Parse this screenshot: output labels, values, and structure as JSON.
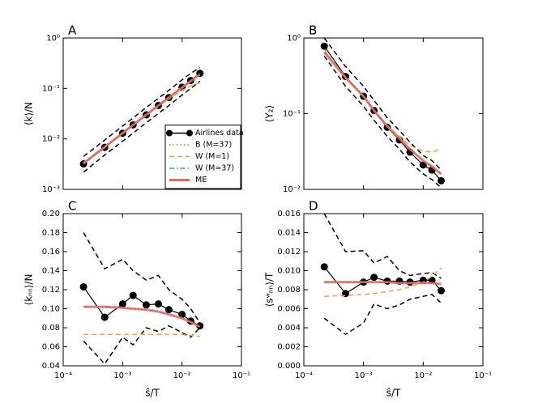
{
  "chart_data": [
    {
      "type": "line",
      "title": "A",
      "ylabel": "⟨k⟩/N",
      "xlog": true,
      "ylog": true,
      "legend": "lower right",
      "x": [
        0.00022,
        0.0005,
        0.001,
        0.0015,
        0.0025,
        0.004,
        0.006,
        0.01,
        0.014,
        0.02
      ],
      "xlim": [
        0.0001,
        0.1
      ],
      "xticks": [
        {
          "value": 0.0001,
          "label": "10⁻⁴"
        },
        {
          "value": 0.001,
          "label": "10⁻³"
        },
        {
          "value": 0.01,
          "label": "10⁻²"
        },
        {
          "value": 0.1,
          "label": "10⁻¹"
        }
      ],
      "ylim": [
        0.001,
        1
      ],
      "yticks": [
        {
          "value": 0.001,
          "label": "10⁻³"
        },
        {
          "value": 0.01,
          "label": "10⁻²"
        },
        {
          "value": 0.1,
          "label": "10⁻¹"
        },
        {
          "value": 1,
          "label": "10⁰"
        }
      ],
      "series": [
        {
          "color": "#000000",
          "style": "dashed",
          "values": [
            0.0045,
            0.0095,
            0.018,
            0.026,
            0.042,
            0.064,
            0.092,
            0.148,
            0.2,
            0.26
          ]
        },
        {
          "color": "#000000",
          "style": "dashed",
          "values": [
            0.0022,
            0.0048,
            0.009,
            0.013,
            0.021,
            0.032,
            0.046,
            0.074,
            0.1,
            0.14
          ]
        },
        {
          "name": "Airlines data",
          "color": "#000000",
          "style": "solid",
          "marker": true,
          "values": [
            0.0032,
            0.0068,
            0.013,
            0.019,
            0.03,
            0.046,
            0.066,
            0.106,
            0.144,
            0.2
          ]
        },
        {
          "name": "B (M=37)",
          "color": "#4caf50",
          "style": "dotted",
          "values": [
            0.0033,
            0.0069,
            0.013,
            0.019,
            0.03,
            0.046,
            0.066,
            0.104,
            0.14,
            0.19
          ]
        },
        {
          "name": "W (M=1)",
          "color": "#f5a04a",
          "style": "dashed",
          "values": [
            0.0032,
            0.0068,
            0.013,
            0.019,
            0.029,
            0.044,
            0.062,
            0.092,
            0.112,
            0.13
          ]
        },
        {
          "name": "W (M=37)",
          "color": "#4a90d0",
          "style": "dashdot",
          "values": [
            0.0033,
            0.0069,
            0.013,
            0.019,
            0.03,
            0.046,
            0.066,
            0.104,
            0.14,
            0.19
          ]
        },
        {
          "name": "ME",
          "color": "#e06b63",
          "style": "thick",
          "values": [
            0.0033,
            0.0069,
            0.013,
            0.019,
            0.03,
            0.046,
            0.066,
            0.104,
            0.14,
            0.19
          ]
        }
      ]
    },
    {
      "type": "line",
      "title": "B",
      "ylabel": "⟨Y₂⟩",
      "xlog": true,
      "ylog": true,
      "x": [
        0.00022,
        0.0005,
        0.001,
        0.0015,
        0.0025,
        0.004,
        0.006,
        0.01,
        0.014,
        0.02
      ],
      "xlim": [
        0.0001,
        0.1
      ],
      "xticks": [
        {
          "value": 0.0001,
          "label": "10⁻⁴"
        },
        {
          "value": 0.001,
          "label": "10⁻³"
        },
        {
          "value": 0.01,
          "label": "10⁻²"
        },
        {
          "value": 0.1,
          "label": "10⁻¹"
        }
      ],
      "ylim": [
        0.01,
        1
      ],
      "yticks": [
        {
          "value": 0.01,
          "label": "10⁻²"
        },
        {
          "value": 0.1,
          "label": "10⁻¹"
        },
        {
          "value": 1,
          "label": "10⁰"
        }
      ],
      "series": [
        {
          "color": "#000000",
          "style": "dashed",
          "values": [
            1.0,
            0.42,
            0.23,
            0.15,
            0.088,
            0.06,
            0.042,
            0.028,
            0.024,
            0.018
          ]
        },
        {
          "color": "#000000",
          "style": "dashed",
          "values": [
            0.58,
            0.23,
            0.125,
            0.082,
            0.05,
            0.034,
            0.023,
            0.016,
            0.0135,
            0.0105
          ]
        },
        {
          "name": "Airlines data",
          "color": "#000000",
          "style": "solid",
          "marker": true,
          "values": [
            0.78,
            0.31,
            0.17,
            0.11,
            0.066,
            0.045,
            0.031,
            0.021,
            0.018,
            0.013
          ]
        },
        {
          "name": "B (M=37)",
          "color": "#4caf50",
          "style": "dotted",
          "values": [
            0.65,
            0.3,
            0.17,
            0.11,
            0.068,
            0.047,
            0.034,
            0.024,
            0.02,
            0.016
          ]
        },
        {
          "name": "W (M=1)",
          "color": "#f5a04a",
          "style": "dashed",
          "values": [
            0.7,
            0.3,
            0.17,
            0.11,
            0.07,
            0.05,
            0.038,
            0.032,
            0.031,
            0.034
          ]
        },
        {
          "name": "W (M=37)",
          "color": "#4a90d0",
          "style": "dashdot",
          "values": [
            0.65,
            0.3,
            0.17,
            0.11,
            0.068,
            0.047,
            0.034,
            0.024,
            0.02,
            0.016
          ]
        },
        {
          "name": "ME",
          "color": "#e06b63",
          "style": "thick",
          "values": [
            0.65,
            0.3,
            0.17,
            0.11,
            0.068,
            0.047,
            0.034,
            0.024,
            0.02,
            0.016
          ]
        }
      ]
    },
    {
      "type": "line",
      "title": "C",
      "ylabel": "⟨kₙₙ⟩/N",
      "xlabel": "ŝ/T",
      "xlog": true,
      "ylog": false,
      "x": [
        0.00022,
        0.0005,
        0.001,
        0.0015,
        0.0025,
        0.004,
        0.006,
        0.01,
        0.014,
        0.02
      ],
      "xlim": [
        0.0001,
        0.1
      ],
      "xticks": [
        {
          "value": 0.0001,
          "label": "10⁻⁴"
        },
        {
          "value": 0.001,
          "label": "10⁻³"
        },
        {
          "value": 0.01,
          "label": "10⁻²"
        },
        {
          "value": 0.1,
          "label": "10⁻¹"
        }
      ],
      "ylim": [
        0.04,
        0.2
      ],
      "yticks": [
        0.04,
        0.06,
        0.08,
        {
          "value": 0.1,
          "label": "0.10"
        },
        0.12,
        0.14,
        0.16,
        0.18,
        {
          "value": 0.2,
          "label": "0.20"
        }
      ],
      "series": [
        {
          "color": "#000000",
          "style": "dashed",
          "values": [
            0.18,
            0.142,
            0.152,
            0.14,
            0.13,
            0.135,
            0.12,
            0.11,
            0.1,
            0.085
          ]
        },
        {
          "color": "#000000",
          "style": "dashed",
          "values": [
            0.066,
            0.042,
            0.07,
            0.062,
            0.08,
            0.076,
            0.082,
            0.075,
            0.07,
            0.08
          ]
        },
        {
          "name": "Airlines data",
          "color": "#000000",
          "style": "solid",
          "marker": true,
          "values": [
            0.123,
            0.091,
            0.105,
            0.114,
            0.104,
            0.105,
            0.099,
            0.094,
            0.087,
            0.082
          ]
        },
        {
          "name": "B (M=37)",
          "color": "#4caf50",
          "style": "dotted",
          "values": [
            0.102,
            0.102,
            0.101,
            0.1,
            0.099,
            0.097,
            0.094,
            0.09,
            0.086,
            0.081
          ]
        },
        {
          "name": "W (M=1)",
          "color": "#f5a04a",
          "style": "dashed",
          "values": [
            0.073,
            0.073,
            0.073,
            0.073,
            0.073,
            0.073,
            0.073,
            0.073,
            0.072,
            0.071
          ]
        },
        {
          "name": "W (M=37)",
          "color": "#4a90d0",
          "style": "dashdot",
          "values": [
            0.102,
            0.102,
            0.101,
            0.1,
            0.099,
            0.097,
            0.094,
            0.09,
            0.086,
            0.081
          ]
        },
        {
          "name": "ME",
          "color": "#e06b63",
          "style": "thick",
          "values": [
            0.102,
            0.102,
            0.101,
            0.1,
            0.099,
            0.097,
            0.094,
            0.09,
            0.086,
            0.081
          ]
        }
      ]
    },
    {
      "type": "line",
      "title": "D",
      "ylabel": "⟨sʷₙₙ⟩/T",
      "xlabel": "ŝ/T",
      "xlog": true,
      "ylog": false,
      "x": [
        0.00022,
        0.0005,
        0.001,
        0.0015,
        0.0025,
        0.004,
        0.006,
        0.01,
        0.014,
        0.02
      ],
      "xlim": [
        0.0001,
        0.1
      ],
      "xticks": [
        {
          "value": 0.0001,
          "label": "10⁻⁴"
        },
        {
          "value": 0.001,
          "label": "10⁻³"
        },
        {
          "value": 0.01,
          "label": "10⁻²"
        },
        {
          "value": 0.1,
          "label": "10⁻¹"
        }
      ],
      "ylim": [
        0,
        0.016
      ],
      "yticks": [
        {
          "value": 0,
          "label": "0.000"
        },
        0.002,
        0.004,
        0.006,
        0.008,
        {
          "value": 0.01,
          "label": "0.010"
        },
        0.012,
        0.014,
        0.016
      ],
      "series": [
        {
          "color": "#000000",
          "style": "dashed",
          "values": [
            0.016,
            0.012,
            0.0121,
            0.0108,
            0.0115,
            0.01,
            0.0095,
            0.0097,
            0.0098,
            0.0092
          ]
        },
        {
          "color": "#000000",
          "style": "dashed",
          "values": [
            0.005,
            0.0033,
            0.0045,
            0.0065,
            0.006,
            0.0064,
            0.007,
            0.0073,
            0.0075,
            0.0066
          ]
        },
        {
          "name": "Airlines data",
          "color": "#000000",
          "style": "solid",
          "marker": true,
          "values": [
            0.0104,
            0.0076,
            0.0088,
            0.0093,
            0.0089,
            0.0089,
            0.0088,
            0.009,
            0.009,
            0.0079
          ]
        },
        {
          "name": "B (M=37)",
          "color": "#4caf50",
          "style": "dotted",
          "values": [
            0.0088,
            0.0088,
            0.0088,
            0.0088,
            0.0088,
            0.0087,
            0.0087,
            0.0087,
            0.0087,
            0.0086
          ]
        },
        {
          "name": "W (M=1)",
          "color": "#f5a04a",
          "style": "dashed",
          "values": [
            0.0073,
            0.0074,
            0.0075,
            0.0076,
            0.0078,
            0.008,
            0.0083,
            0.0088,
            0.0094,
            0.0103
          ]
        },
        {
          "name": "W (M=37)",
          "color": "#4a90d0",
          "style": "dashdot",
          "values": [
            0.0088,
            0.0088,
            0.0088,
            0.0088,
            0.0088,
            0.0087,
            0.0087,
            0.0087,
            0.0087,
            0.0086
          ]
        },
        {
          "name": "ME",
          "color": "#e06b63",
          "style": "thick",
          "values": [
            0.0088,
            0.0088,
            0.0088,
            0.0088,
            0.0088,
            0.0087,
            0.0087,
            0.0087,
            0.0087,
            0.0086
          ]
        }
      ]
    }
  ]
}
